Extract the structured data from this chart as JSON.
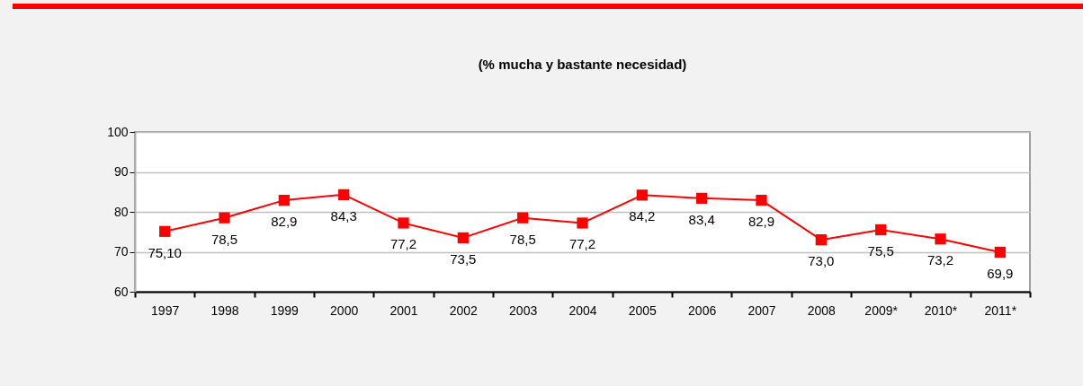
{
  "chart_data": {
    "type": "line",
    "title": "(% mucha y bastante necesidad)",
    "categories": [
      "1997",
      "1998",
      "1999",
      "2000",
      "2001",
      "2002",
      "2003",
      "2004",
      "2005",
      "2006",
      "2007",
      "2008",
      "2009*",
      "2010*",
      "2011*"
    ],
    "series": [
      {
        "color": "#ff0000",
        "values": [
          75.1,
          78.5,
          82.9,
          84.3,
          77.2,
          73.5,
          78.5,
          77.2,
          84.2,
          83.4,
          82.9,
          73.0,
          75.5,
          73.2,
          69.9
        ],
        "value_labels": [
          "75,10",
          "78,5",
          "82,9",
          "84,3",
          "77,2",
          "73,5",
          "78,5",
          "77,2",
          "84,2",
          "83,4",
          "82,9",
          "73,0",
          "75,5",
          "73,2",
          "69,9"
        ]
      }
    ],
    "ylim": [
      60,
      100
    ],
    "yticks": [
      60,
      70,
      80,
      90,
      100
    ],
    "grid": "y",
    "marker": "square",
    "line_style": "solid",
    "legend": false
  }
}
